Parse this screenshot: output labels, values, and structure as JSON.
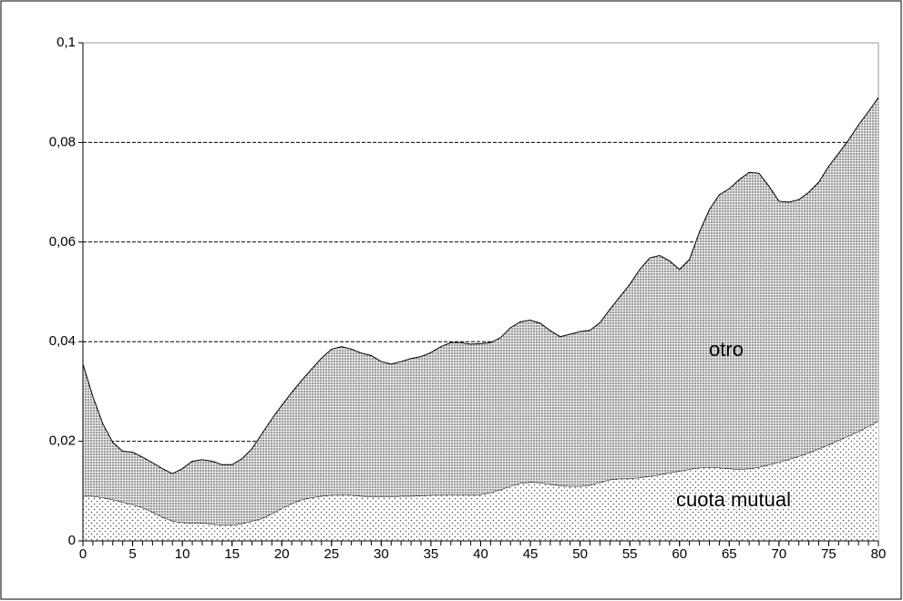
{
  "chart_data": {
    "type": "stacked-area",
    "x": [
      0,
      1,
      2,
      3,
      4,
      5,
      6,
      7,
      8,
      9,
      10,
      11,
      12,
      13,
      14,
      15,
      16,
      17,
      18,
      19,
      20,
      21,
      22,
      23,
      24,
      25,
      26,
      27,
      28,
      29,
      30,
      31,
      32,
      33,
      34,
      35,
      36,
      37,
      38,
      39,
      40,
      41,
      42,
      43,
      44,
      45,
      46,
      47,
      48,
      49,
      50,
      51,
      52,
      53,
      54,
      55,
      56,
      57,
      58,
      59,
      60,
      61,
      62,
      63,
      64,
      65,
      66,
      67,
      68,
      69,
      70,
      71,
      72,
      73,
      74,
      75,
      76,
      77,
      78,
      79,
      80
    ],
    "series": [
      {
        "name": "cuota mutual",
        "color": "#555555",
        "values": [
          0.009,
          0.009,
          0.0087,
          0.0083,
          0.0078,
          0.0073,
          0.0067,
          0.0058,
          0.0048,
          0.004,
          0.0037,
          0.0036,
          0.0036,
          0.0034,
          0.0032,
          0.0032,
          0.0035,
          0.004,
          0.0045,
          0.0055,
          0.0065,
          0.0075,
          0.0083,
          0.0087,
          0.009,
          0.0092,
          0.0093,
          0.0092,
          0.009,
          0.0089,
          0.0089,
          0.0089,
          0.009,
          0.009,
          0.0091,
          0.0092,
          0.0092,
          0.0093,
          0.0093,
          0.0092,
          0.0093,
          0.0097,
          0.0103,
          0.011,
          0.0116,
          0.0118,
          0.0117,
          0.0114,
          0.0111,
          0.011,
          0.011,
          0.0112,
          0.0118,
          0.0123,
          0.0125,
          0.0125,
          0.0127,
          0.013,
          0.0133,
          0.0137,
          0.014,
          0.0144,
          0.0147,
          0.0148,
          0.0147,
          0.0145,
          0.0144,
          0.0145,
          0.0148,
          0.0153,
          0.0158,
          0.0164,
          0.017,
          0.0177,
          0.0185,
          0.0193,
          0.0202,
          0.0211,
          0.022,
          0.023,
          0.0241
        ]
      },
      {
        "name": "otro",
        "color": "#333333",
        "values": [
          0.0265,
          0.02,
          0.0148,
          0.0115,
          0.0102,
          0.0105,
          0.0101,
          0.0099,
          0.0097,
          0.0095,
          0.0108,
          0.0124,
          0.0127,
          0.0126,
          0.0121,
          0.0121,
          0.013,
          0.0145,
          0.017,
          0.019,
          0.0207,
          0.0223,
          0.0239,
          0.0258,
          0.0277,
          0.0293,
          0.0297,
          0.0293,
          0.0287,
          0.0283,
          0.0271,
          0.0266,
          0.027,
          0.0276,
          0.0279,
          0.0286,
          0.0298,
          0.0305,
          0.0305,
          0.0303,
          0.0303,
          0.0301,
          0.0305,
          0.0318,
          0.0324,
          0.0325,
          0.032,
          0.0308,
          0.0299,
          0.0305,
          0.031,
          0.0311,
          0.032,
          0.0342,
          0.0365,
          0.039,
          0.0418,
          0.0438,
          0.044,
          0.0425,
          0.0405,
          0.0421,
          0.0473,
          0.0517,
          0.0548,
          0.0562,
          0.0581,
          0.0595,
          0.059,
          0.0559,
          0.0524,
          0.0516,
          0.0515,
          0.0523,
          0.0535,
          0.0559,
          0.0576,
          0.0594,
          0.0615,
          0.0632,
          0.0649
        ]
      }
    ],
    "xlim": [
      0,
      80
    ],
    "xticks": [
      0,
      5,
      10,
      15,
      20,
      25,
      30,
      35,
      40,
      45,
      50,
      55,
      60,
      65,
      70,
      75,
      80
    ],
    "ylim": [
      0,
      0.1
    ],
    "yticks": [
      0,
      {
        "value": 0.02,
        "label": "0,02"
      },
      {
        "value": 0.04,
        "label": "0,04"
      },
      {
        "value": 0.06,
        "label": "0,06"
      },
      {
        "value": 0.08,
        "label": "0,08"
      },
      {
        "value": 0.1,
        "label": "0,1"
      }
    ],
    "grid": true
  }
}
